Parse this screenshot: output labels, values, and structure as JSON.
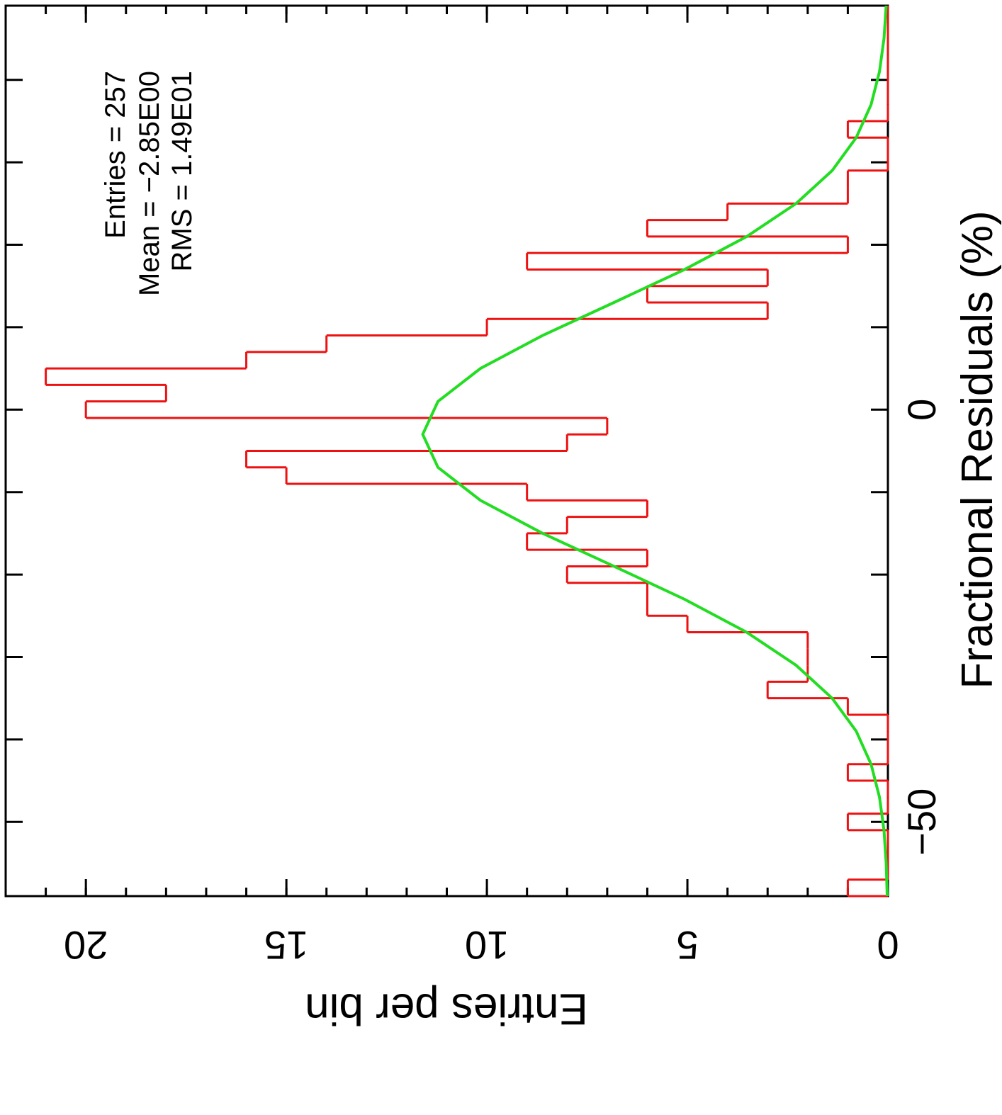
{
  "chart_data": {
    "type": "histogram",
    "x_label": "Fractional Residuals (%)",
    "y_label": "Entries per bin",
    "annotations": [
      "Entries = 257",
      "Mean = −2.85E00",
      "RMS = 1.49E01"
    ],
    "bins": [
      -59,
      -57,
      -55,
      -53,
      -51,
      -49,
      -47,
      -45,
      -43,
      -41,
      -39,
      -37,
      -35,
      -33,
      -31,
      -29,
      -27,
      -25,
      -23,
      -21,
      -19,
      -17,
      -15,
      -13,
      -11,
      -9,
      -7,
      -5,
      -3,
      -1,
      1,
      3,
      5,
      7,
      9,
      11,
      13,
      15,
      17,
      19,
      21,
      23,
      25,
      27,
      29,
      31,
      33,
      35,
      37,
      39,
      41,
      43,
      45,
      47,
      49
    ],
    "values": [
      1,
      0,
      0,
      0,
      1,
      0,
      0,
      1,
      0,
      0,
      0,
      1,
      3,
      2,
      2,
      2,
      5,
      6,
      6,
      8,
      6,
      9,
      8,
      6,
      9,
      15,
      16,
      8,
      7,
      20,
      18,
      21,
      16,
      14,
      10,
      3,
      6,
      3,
      9,
      1,
      6,
      4,
      1,
      1,
      0,
      0,
      1,
      0,
      0,
      0,
      0,
      0,
      0,
      0
    ],
    "color": "#ee1111",
    "fit": {
      "color": "#22dd22",
      "x": [
        -59,
        -55,
        -51,
        -47,
        -43,
        -39,
        -35,
        -31,
        -27,
        -23,
        -19,
        -15,
        -11,
        -7,
        -3,
        1,
        5,
        9,
        13,
        17,
        21,
        25,
        29,
        33,
        37,
        41,
        45,
        49
      ],
      "values": [
        0.018,
        0.043,
        0.098,
        0.21,
        0.42,
        0.79,
        1.39,
        2.29,
        3.52,
        5.07,
        6.83,
        8.61,
        10.16,
        11.22,
        11.6,
        11.22,
        10.16,
        8.61,
        6.83,
        5.07,
        3.52,
        2.29,
        1.39,
        0.79,
        0.42,
        0.21,
        0.098,
        0.043
      ]
    },
    "xlim": [
      -59,
      49
    ],
    "xticks": [
      {
        "value": -50,
        "label": "−50"
      },
      {
        "value": -40,
        "label": null
      },
      {
        "value": -30,
        "label": null
      },
      {
        "value": -20,
        "label": null
      },
      {
        "value": -10,
        "label": null
      },
      0,
      {
        "value": 10,
        "label": null
      },
      {
        "value": 20,
        "label": null
      },
      {
        "value": 30,
        "label": null
      },
      {
        "value": 40,
        "label": null
      }
    ],
    "ylim": [
      0,
      22
    ],
    "yticks": [
      0,
      5,
      10,
      15,
      20
    ],
    "y_minor_step": 1,
    "rotated": true
  }
}
